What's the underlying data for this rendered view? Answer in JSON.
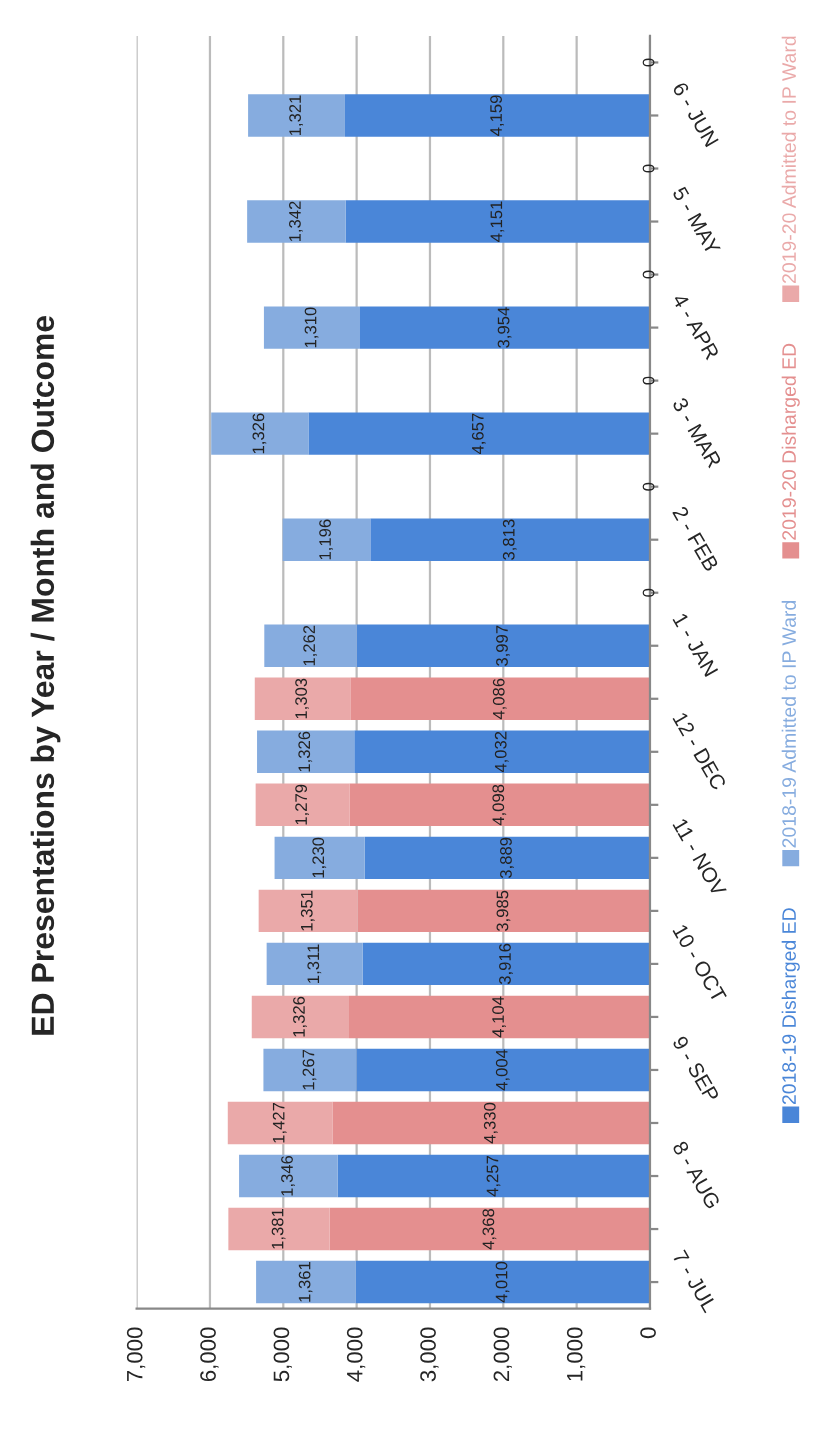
{
  "chart_data": {
    "type": "bar",
    "orientation": "horizontal",
    "stacked": true,
    "title": "ED Presentations by Year / Month and Outcome",
    "categories": [
      null,
      "6 - JUN",
      null,
      "5 - MAY",
      null,
      "4 - APR",
      null,
      "3 - MAR",
      null,
      "2 - FEB",
      null,
      "1 - JAN",
      null,
      "12 - DEC",
      null,
      "11 - NOV",
      null,
      "10 - OCT",
      null,
      "9 - SEP",
      null,
      "8 - AUG",
      null,
      "7 - JUL"
    ],
    "series": [
      {
        "name": "2018-19 Disharged ED",
        "color": "#4a86d8",
        "values": [
          null,
          4159,
          null,
          4151,
          null,
          3954,
          null,
          4657,
          null,
          3813,
          null,
          3997,
          null,
          4032,
          null,
          3889,
          null,
          3916,
          null,
          4004,
          null,
          4257,
          null,
          4010
        ],
        "value_labels": [
          null,
          "4,159",
          null,
          "4,151",
          null,
          "3,954",
          null,
          "4,657",
          null,
          "3,813",
          null,
          "3,997",
          null,
          "4,032",
          null,
          "3,889",
          null,
          "3,916",
          null,
          "4,004",
          null,
          "4,257",
          null,
          "4,010"
        ]
      },
      {
        "name": "2018-19 Admitted to IP Ward",
        "color": "#86acdf",
        "values": [
          null,
          1321,
          null,
          1342,
          null,
          1310,
          null,
          1326,
          null,
          1196,
          null,
          1262,
          null,
          1326,
          null,
          1230,
          null,
          1311,
          null,
          1267,
          null,
          1346,
          null,
          1361
        ],
        "value_labels": [
          null,
          "1,321",
          null,
          "1,342",
          null,
          "1,310",
          null,
          "1,326",
          null,
          "1,196",
          null,
          "1,262",
          null,
          "1,326",
          null,
          "1,230",
          null,
          "1,311",
          null,
          "1,267",
          null,
          "1,346",
          null,
          "1,361"
        ]
      },
      {
        "name": "2019-20 Disharged ED",
        "color": "#e48f8f",
        "values": [
          0,
          null,
          0,
          null,
          0,
          null,
          0,
          null,
          0,
          null,
          0,
          null,
          4086,
          null,
          4098,
          null,
          3985,
          null,
          4104,
          null,
          4330,
          null,
          4368,
          null
        ],
        "value_labels": [
          "0",
          null,
          "0",
          null,
          "0",
          null,
          "0",
          null,
          "0",
          null,
          "0",
          null,
          "4,086",
          null,
          "4,098",
          null,
          "3,985",
          null,
          "4,104",
          null,
          "4,330",
          null,
          "4,368",
          null
        ]
      },
      {
        "name": "2019-20 Admitted to IP Ward",
        "color": "#eaa9a9",
        "values": [
          0,
          null,
          0,
          null,
          0,
          null,
          0,
          null,
          0,
          null,
          0,
          null,
          1303,
          null,
          1279,
          null,
          1351,
          null,
          1326,
          null,
          1427,
          null,
          1381,
          null
        ],
        "value_labels": [
          null,
          null,
          null,
          null,
          null,
          null,
          null,
          null,
          null,
          null,
          null,
          null,
          "1,303",
          null,
          "1,279",
          null,
          "1,351",
          null,
          "1,326",
          null,
          "1,427",
          null,
          "1,381",
          null
        ]
      }
    ],
    "xlim": [
      7000,
      0
    ],
    "xticks": [
      {
        "value": 7000,
        "label": "7,000"
      },
      {
        "value": 6000,
        "label": "6,000"
      },
      {
        "value": 5000,
        "label": "5,000"
      },
      {
        "value": 4000,
        "label": "4,000"
      },
      {
        "value": 3000,
        "label": "3,000"
      },
      {
        "value": 2000,
        "label": "2,000"
      },
      {
        "value": 1000,
        "label": "1,000"
      },
      0
    ],
    "grid": "x",
    "legend": "right"
  }
}
